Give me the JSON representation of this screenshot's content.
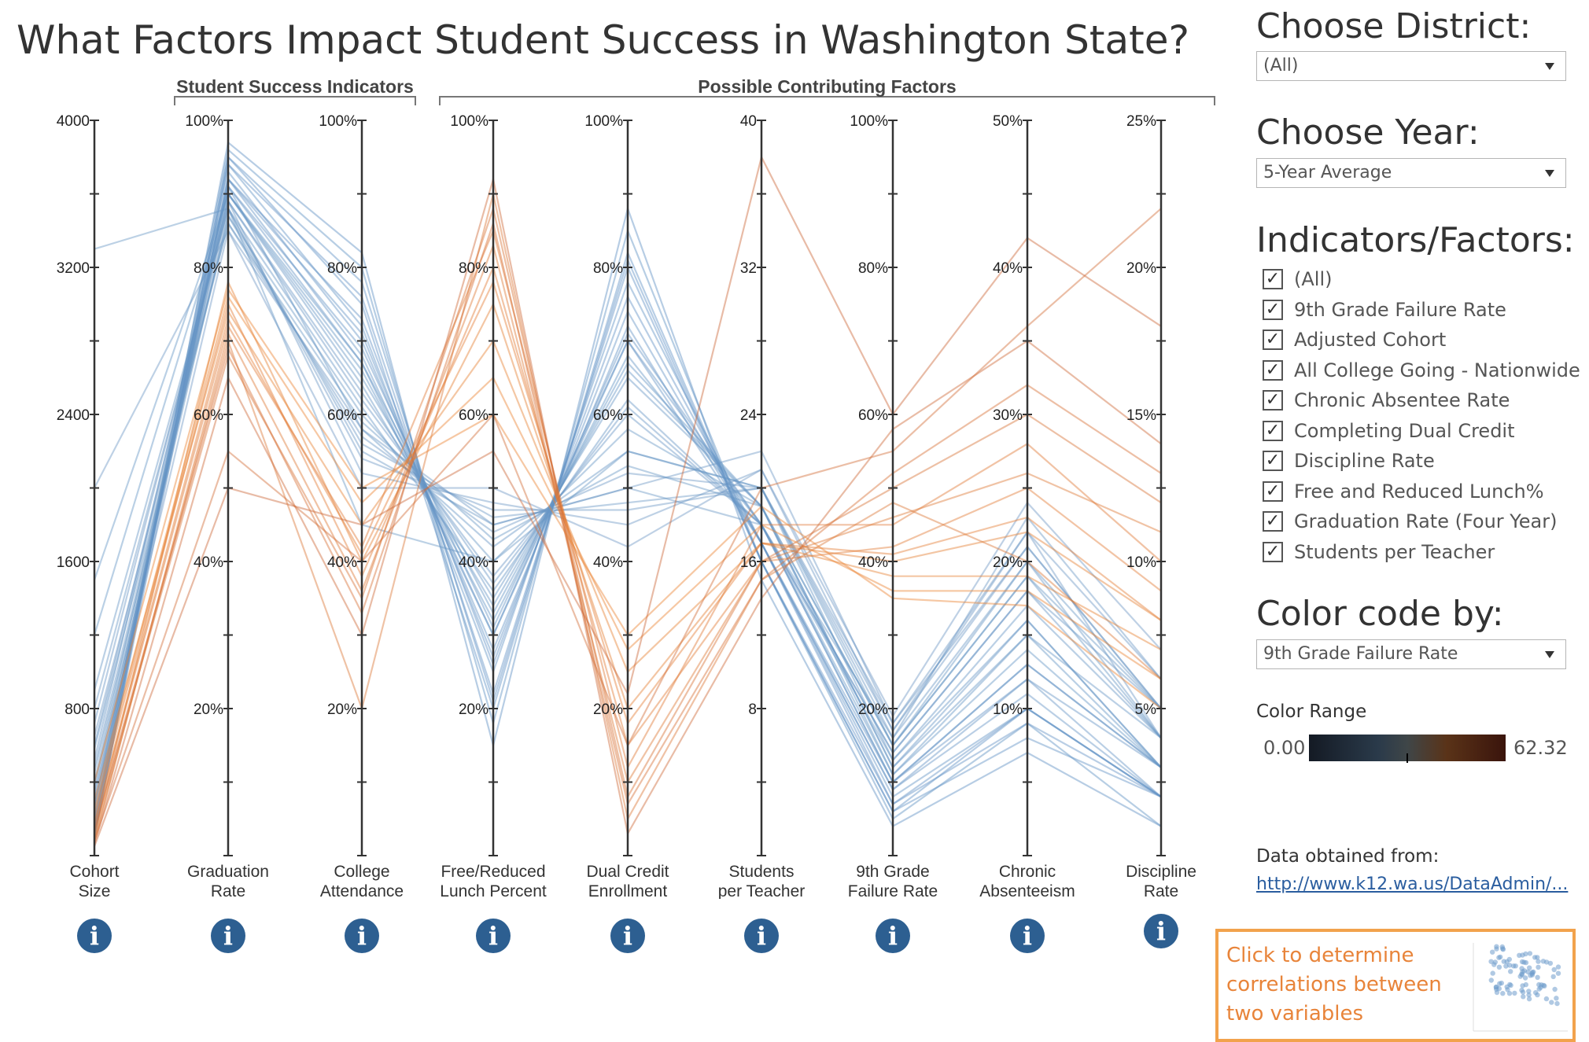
{
  "title": "What Factors Impact Student Success in Washington State?",
  "groups": [
    {
      "label": "Student Success Indicators",
      "from": 1,
      "to": 2
    },
    {
      "label": "Possible Contributing Factors",
      "from": 3,
      "to": 8
    }
  ],
  "axes": [
    {
      "label1": "Cohort",
      "label2": "Size",
      "ticks": [
        "4000",
        "3200",
        "2400",
        "1600",
        "800"
      ]
    },
    {
      "label1": "Graduation",
      "label2": "Rate",
      "ticks": [
        "100%",
        "80%",
        "60%",
        "40%",
        "20%"
      ]
    },
    {
      "label1": "College",
      "label2": "Attendance",
      "ticks": [
        "100%",
        "80%",
        "60%",
        "40%",
        "20%"
      ]
    },
    {
      "label1": "Free/Reduced",
      "label2": "Lunch Percent",
      "ticks": [
        "100%",
        "80%",
        "60%",
        "40%",
        "20%"
      ]
    },
    {
      "label1": "Dual Credit",
      "label2": "Enrollment",
      "ticks": [
        "100%",
        "80%",
        "60%",
        "40%",
        "20%"
      ]
    },
    {
      "label1": "Students",
      "label2": "per Teacher",
      "ticks": [
        "40",
        "32",
        "24",
        "16",
        "8"
      ]
    },
    {
      "label1": "9th Grade",
      "label2": "Failure Rate",
      "ticks": [
        "100%",
        "80%",
        "60%",
        "40%",
        "20%"
      ]
    },
    {
      "label1": "Chronic",
      "label2": "Absenteeism",
      "ticks": [
        "50%",
        "40%",
        "30%",
        "20%",
        "10%"
      ]
    },
    {
      "label1": "Discipline",
      "label2": "Rate",
      "ticks": [
        "25%",
        "20%",
        "15%",
        "10%",
        "5%"
      ]
    }
  ],
  "chart_data": {
    "type": "line",
    "x": [
      "Cohort Size",
      "Graduation Rate",
      "College Attendance",
      "Free/Reduced Lunch Percent",
      "Dual Credit Enrollment",
      "Students per Teacher",
      "9th Grade Failure Rate",
      "Chronic Absenteeism",
      "Discipline Rate"
    ],
    "axis_ranges": [
      [
        0,
        4000
      ],
      [
        0,
        100
      ],
      [
        0,
        100
      ],
      [
        0,
        100
      ],
      [
        0,
        100
      ],
      [
        0,
        40
      ],
      [
        0,
        100
      ],
      [
        0,
        50
      ],
      [
        0,
        25
      ]
    ],
    "color_by": "9th Grade Failure Rate",
    "color_range": [
      0.0,
      62.32
    ],
    "colors": {
      "low": "#5b8fc4",
      "high": "#f08a35",
      "dark_high": "#c9663a"
    },
    "series": [
      {
        "values": [
          250,
          92,
          68,
          30,
          70,
          18,
          10,
          12,
          3
        ]
      },
      {
        "values": [
          150,
          94,
          72,
          25,
          78,
          17,
          8,
          10,
          2
        ]
      },
      {
        "values": [
          400,
          90,
          65,
          35,
          65,
          19,
          12,
          15,
          4
        ]
      },
      {
        "values": [
          600,
          89,
          62,
          38,
          60,
          18,
          14,
          18,
          5
        ]
      },
      {
        "values": [
          100,
          95,
          75,
          20,
          82,
          16,
          6,
          8,
          2
        ]
      },
      {
        "values": [
          300,
          91,
          58,
          42,
          55,
          20,
          13,
          16,
          3
        ]
      },
      {
        "values": [
          800,
          88,
          55,
          45,
          50,
          18,
          16,
          20,
          4
        ]
      },
      {
        "values": [
          200,
          93,
          70,
          28,
          72,
          17,
          9,
          11,
          2
        ]
      },
      {
        "values": [
          450,
          87,
          60,
          40,
          58,
          19,
          15,
          19,
          5
        ]
      },
      {
        "values": [
          1200,
          90,
          66,
          32,
          68,
          18,
          11,
          14,
          3
        ]
      },
      {
        "values": [
          180,
          96,
          80,
          18,
          85,
          16,
          5,
          9,
          1
        ]
      },
      {
        "values": [
          350,
          89,
          52,
          48,
          45,
          21,
          17,
          22,
          6
        ]
      },
      {
        "values": [
          650,
          86,
          57,
          44,
          52,
          20,
          18,
          21,
          5
        ]
      },
      {
        "values": [
          120,
          92,
          73,
          26,
          76,
          17,
          7,
          10,
          2
        ]
      },
      {
        "values": [
          900,
          88,
          61,
          36,
          62,
          18,
          13,
          17,
          4
        ]
      },
      {
        "values": [
          275,
          90,
          64,
          34,
          66,
          19,
          12,
          16,
          3
        ]
      },
      {
        "values": [
          520,
          91,
          69,
          31,
          70,
          17,
          10,
          13,
          3
        ]
      },
      {
        "values": [
          160,
          94,
          76,
          22,
          80,
          16,
          7,
          9,
          2
        ]
      },
      {
        "values": [
          380,
          87,
          56,
          46,
          48,
          20,
          16,
          23,
          6
        ]
      },
      {
        "values": [
          720,
          89,
          63,
          37,
          61,
          18,
          14,
          18,
          4
        ]
      },
      {
        "values": [
          90,
          97,
          82,
          15,
          88,
          15,
          4,
          7,
          1
        ]
      },
      {
        "values": [
          330,
          85,
          50,
          50,
          42,
          21,
          19,
          24,
          7
        ]
      },
      {
        "values": [
          1500,
          90,
          67,
          33,
          67,
          19,
          11,
          15,
          3
        ]
      },
      {
        "values": [
          210,
          92,
          71,
          27,
          74,
          17,
          9,
          12,
          2
        ]
      },
      {
        "values": [
          3300,
          88,
          45,
          40,
          55,
          20,
          15,
          20,
          5
        ]
      },
      {
        "values": [
          2000,
          85,
          58,
          45,
          50,
          22,
          18,
          22,
          4
        ]
      },
      {
        "values": [
          140,
          95,
          78,
          21,
          81,
          16,
          6,
          10,
          2
        ]
      },
      {
        "values": [
          480,
          88,
          54,
          47,
          47,
          20,
          17,
          21,
          5
        ]
      },
      {
        "values": [
          260,
          91,
          67,
          30,
          71,
          18,
          10,
          13,
          3
        ]
      },
      {
        "values": [
          580,
          86,
          59,
          43,
          53,
          19,
          15,
          19,
          4
        ]
      },
      {
        "values": [
          110,
          78,
          40,
          75,
          20,
          17,
          40,
          22,
          8
        ]
      },
      {
        "values": [
          220,
          75,
          38,
          80,
          15,
          16,
          42,
          25,
          9
        ]
      },
      {
        "values": [
          170,
          72,
          42,
          85,
          12,
          18,
          45,
          28,
          10
        ]
      },
      {
        "values": [
          90,
          70,
          20,
          90,
          5,
          15,
          48,
          20,
          6
        ]
      },
      {
        "values": [
          300,
          74,
          45,
          70,
          25,
          17,
          38,
          19,
          7
        ]
      },
      {
        "values": [
          130,
          68,
          35,
          88,
          8,
          16,
          50,
          30,
          12
        ]
      },
      {
        "values": [
          250,
          76,
          48,
          65,
          28,
          18,
          36,
          18,
          6
        ]
      },
      {
        "values": [
          60,
          65,
          30,
          92,
          3,
          14,
          58,
          35,
          14
        ]
      },
      {
        "values": [
          180,
          73,
          41,
          78,
          18,
          17,
          41,
          23,
          8
        ]
      },
      {
        "values": [
          400,
          77,
          50,
          60,
          30,
          19,
          35,
          17,
          5
        ]
      },
      {
        "values": [
          75,
          71,
          36,
          83,
          10,
          16,
          46,
          26,
          11
        ]
      },
      {
        "values": [
          140,
          69,
          33,
          86,
          7,
          15,
          52,
          32,
          13
        ]
      },
      {
        "values": [
          50,
          50,
          45,
          55,
          22,
          38,
          60,
          42,
          18
        ]
      },
      {
        "values": [
          80,
          55,
          40,
          60,
          15,
          20,
          55,
          36,
          22
        ]
      }
    ]
  },
  "district_label": "Choose District:",
  "district_value": "(All)",
  "year_label": "Choose Year:",
  "year_value": "5-Year Average",
  "indicators_label": "Indicators/Factors:",
  "indicators": [
    "(All)",
    "9th Grade Failure Rate",
    "Adjusted Cohort",
    "All College Going - Nationwide",
    "Chronic Absentee Rate",
    "Completing Dual Credit",
    "Discipline Rate",
    "Free and Reduced Lunch%",
    "Graduation Rate (Four Year)",
    "Students per Teacher"
  ],
  "colorby_label": "Color code by:",
  "colorby_value": "9th Grade Failure Rate",
  "color_range_label": "Color Range",
  "color_min": "0.00",
  "color_max": "62.32",
  "data_source_label": "Data obtained from:",
  "data_source_link": "http://www.k12.wa.us/DataAdmin/...",
  "correlation_text": "Click to determine correlations between two variables",
  "icons": {
    "info": "info-icon",
    "dropdown": "chevron-down-icon",
    "check": "checkmark-icon"
  }
}
